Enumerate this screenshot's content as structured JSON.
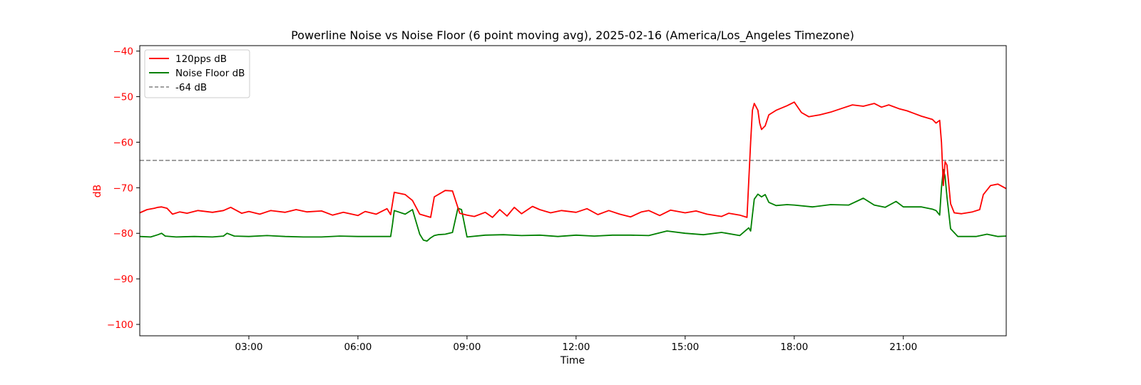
{
  "chart_data": {
    "type": "line",
    "title": "Powerline Noise vs Noise Floor (6 point moving avg), 2025-02-16 (America/Los_Angeles Timezone)",
    "xlabel": "Time",
    "ylabel": "dB",
    "x_unit": "hours",
    "xlim": [
      0.0,
      23.83
    ],
    "ylim": [
      -102.5,
      -38.8
    ],
    "y_ticks": [
      -40,
      -50,
      -60,
      -70,
      -80,
      -90,
      -100
    ],
    "y_tick_labels": [
      "−40",
      "−50",
      "−60",
      "−70",
      "−80",
      "−90",
      "−100"
    ],
    "x_ticks": [
      3,
      6,
      9,
      12,
      15,
      18,
      21
    ],
    "x_tick_labels": [
      "03:00",
      "06:00",
      "09:00",
      "12:00",
      "15:00",
      "18:00",
      "21:00"
    ],
    "grid": false,
    "legend_position": "upper-left",
    "colors": {
      "axis_label": "#ff0000",
      "series_1": "#ff0000",
      "series_2": "#008000",
      "reference": "#808080"
    },
    "series": [
      {
        "name": "120pps dB",
        "x": [
          0.0,
          0.2,
          0.4,
          0.5,
          0.6,
          0.75,
          0.9,
          1.1,
          1.3,
          1.6,
          2.0,
          2.3,
          2.5,
          2.8,
          3.0,
          3.3,
          3.6,
          4.0,
          4.3,
          4.6,
          5.0,
          5.3,
          5.6,
          6.0,
          6.2,
          6.5,
          6.8,
          6.9,
          7.0,
          7.3,
          7.5,
          7.7,
          8.0,
          8.1,
          8.4,
          8.6,
          8.8,
          9.0,
          9.2,
          9.5,
          9.7,
          9.9,
          10.1,
          10.3,
          10.5,
          10.8,
          11.0,
          11.3,
          11.6,
          12.0,
          12.3,
          12.6,
          12.9,
          13.2,
          13.5,
          13.8,
          14.0,
          14.3,
          14.6,
          15.0,
          15.3,
          15.6,
          16.0,
          16.2,
          16.5,
          16.7,
          16.8,
          16.85,
          16.9,
          17.0,
          17.05,
          17.1,
          17.2,
          17.3,
          17.5,
          17.8,
          18.0,
          18.2,
          18.4,
          18.7,
          19.0,
          19.3,
          19.6,
          19.9,
          20.2,
          20.4,
          20.6,
          20.9,
          21.1,
          21.3,
          21.5,
          21.8,
          21.9,
          22.0,
          22.05,
          22.1,
          22.15,
          22.2,
          22.3,
          22.4,
          22.6,
          22.9,
          23.1,
          23.2,
          23.4,
          23.6,
          23.83
        ],
        "y": [
          -75.5,
          -74.8,
          -74.5,
          -74.3,
          -74.2,
          -74.5,
          -75.8,
          -75.3,
          -75.6,
          -75.0,
          -75.4,
          -75.0,
          -74.3,
          -75.6,
          -75.2,
          -75.8,
          -75.0,
          -75.4,
          -74.8,
          -75.3,
          -75.1,
          -76.0,
          -75.4,
          -76.1,
          -75.2,
          -75.8,
          -74.6,
          -75.9,
          -71.0,
          -71.5,
          -72.8,
          -75.8,
          -76.5,
          -72.0,
          -70.6,
          -70.7,
          -75.6,
          -76.0,
          -76.3,
          -75.4,
          -76.5,
          -74.8,
          -76.2,
          -74.3,
          -75.7,
          -74.1,
          -74.8,
          -75.5,
          -75.0,
          -75.4,
          -74.6,
          -75.9,
          -75.0,
          -75.8,
          -76.4,
          -75.3,
          -75.0,
          -76.1,
          -74.9,
          -75.5,
          -75.1,
          -75.8,
          -76.3,
          -75.6,
          -76.0,
          -76.5,
          -60.0,
          -53.0,
          -51.5,
          -53.0,
          -55.8,
          -57.2,
          -56.4,
          -54.0,
          -53.0,
          -52.0,
          -51.2,
          -53.5,
          -54.4,
          -54.0,
          -53.4,
          -52.6,
          -51.8,
          -52.1,
          -51.5,
          -52.3,
          -51.8,
          -52.7,
          -53.1,
          -53.7,
          -54.3,
          -55.0,
          -55.8,
          -55.2,
          -60.0,
          -69.5,
          -64.3,
          -65.0,
          -73.5,
          -75.5,
          -75.7,
          -75.3,
          -74.8,
          -71.5,
          -69.5,
          -69.2,
          -70.2
        ]
      },
      {
        "name": "Noise Floor dB",
        "x": [
          0.0,
          0.3,
          0.5,
          0.6,
          0.7,
          1.0,
          1.5,
          2.0,
          2.3,
          2.4,
          2.6,
          3.0,
          3.5,
          4.0,
          4.5,
          5.0,
          5.5,
          6.0,
          6.5,
          6.8,
          6.9,
          6.95,
          7.0,
          7.3,
          7.5,
          7.7,
          7.8,
          7.9,
          8.0,
          8.1,
          8.2,
          8.4,
          8.6,
          8.75,
          8.85,
          9.0,
          9.5,
          10.0,
          10.5,
          11.0,
          11.5,
          12.0,
          12.5,
          13.0,
          13.5,
          14.0,
          14.5,
          15.0,
          15.5,
          16.0,
          16.5,
          16.75,
          16.8,
          16.85,
          16.9,
          17.0,
          17.1,
          17.2,
          17.3,
          17.5,
          17.8,
          18.0,
          18.5,
          19.0,
          19.5,
          19.9,
          20.2,
          20.5,
          20.8,
          21.0,
          21.5,
          21.8,
          21.9,
          22.0,
          22.05,
          22.1,
          22.15,
          22.2,
          22.3,
          22.5,
          22.8,
          23.0,
          23.3,
          23.6,
          23.83
        ],
        "y": [
          -80.7,
          -80.8,
          -80.3,
          -80.0,
          -80.6,
          -80.8,
          -80.7,
          -80.8,
          -80.6,
          -80.0,
          -80.6,
          -80.7,
          -80.5,
          -80.7,
          -80.8,
          -80.8,
          -80.6,
          -80.7,
          -80.7,
          -80.7,
          -80.7,
          -78.0,
          -75.0,
          -75.8,
          -74.8,
          -80.2,
          -81.5,
          -81.7,
          -81.0,
          -80.5,
          -80.3,
          -80.2,
          -79.8,
          -74.5,
          -74.8,
          -80.8,
          -80.4,
          -80.3,
          -80.5,
          -80.4,
          -80.7,
          -80.4,
          -80.6,
          -80.4,
          -80.4,
          -80.5,
          -79.5,
          -80.0,
          -80.3,
          -79.8,
          -80.5,
          -78.8,
          -79.5,
          -76.0,
          -72.5,
          -71.4,
          -72.0,
          -71.5,
          -73.2,
          -73.9,
          -73.7,
          -73.8,
          -74.2,
          -73.7,
          -73.8,
          -72.3,
          -73.8,
          -74.3,
          -73.0,
          -74.2,
          -74.2,
          -74.7,
          -75.0,
          -76.0,
          -70.0,
          -66.0,
          -67.5,
          -72.0,
          -79.0,
          -80.7,
          -80.7,
          -80.7,
          -80.2,
          -80.7,
          -80.6
        ]
      },
      {
        "name": "-64 dB",
        "style": "dashed",
        "constant": -64
      }
    ]
  }
}
